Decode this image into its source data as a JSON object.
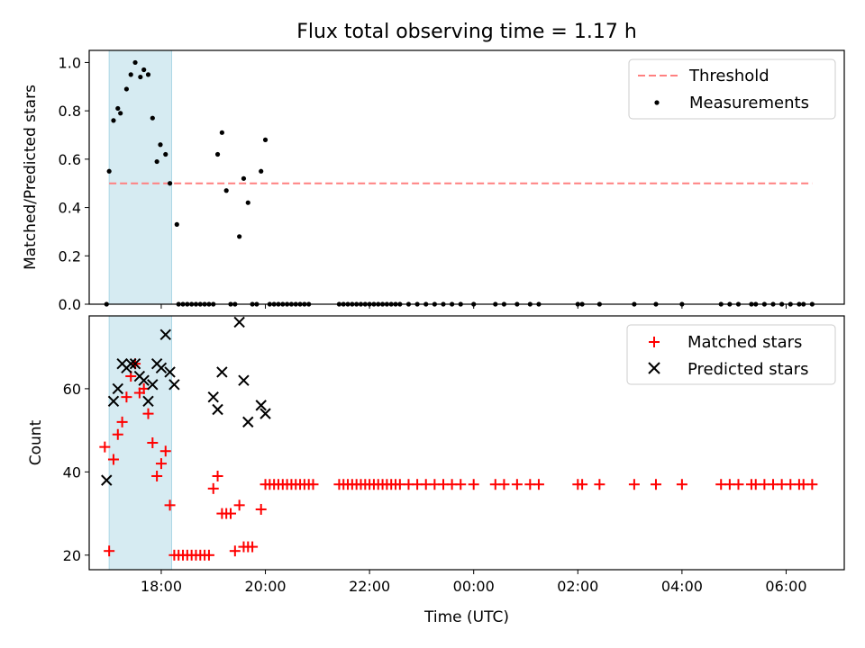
{
  "figure": {
    "title": "Flux total observing time = 1.17 h",
    "xlabel": "Time (UTC)"
  },
  "chart_data": [
    {
      "type": "scatter",
      "panel": "top",
      "ylabel": "Matched/Predicted stars",
      "xlim": [
        "16:37",
        "07:07"
      ],
      "ylim": [
        0,
        1.05
      ],
      "x_ticks": [
        "18:00",
        "20:00",
        "22:00",
        "00:00",
        "02:00",
        "04:00",
        "06:00"
      ],
      "y_ticks": [
        "0.0",
        "0.2",
        "0.4",
        "0.6",
        "0.8",
        "1.0"
      ],
      "shaded_interval": [
        "17:00",
        "18:12"
      ],
      "threshold": 0.5,
      "legend_position": "upper right",
      "series": [
        {
          "name": "Threshold",
          "kind": "dashed-line",
          "color": "#ff8080",
          "x": [
            "17:00",
            "06:30"
          ],
          "y": [
            0.5,
            0.5
          ]
        },
        {
          "name": "Measurements",
          "kind": "dot",
          "color": "#000000",
          "points": [
            [
              "16:57",
              0.0
            ],
            [
              "17:00",
              0.55
            ],
            [
              "17:05",
              0.76
            ],
            [
              "17:10",
              0.81
            ],
            [
              "17:13",
              0.79
            ],
            [
              "17:20",
              0.89
            ],
            [
              "17:25",
              0.95
            ],
            [
              "17:30",
              1.0
            ],
            [
              "17:36",
              0.94
            ],
            [
              "17:40",
              0.97
            ],
            [
              "17:45",
              0.95
            ],
            [
              "17:50",
              0.77
            ],
            [
              "17:55",
              0.59
            ],
            [
              "17:59",
              0.66
            ],
            [
              "18:05",
              0.62
            ],
            [
              "18:10",
              0.5
            ],
            [
              "18:18",
              0.33
            ],
            [
              "18:20",
              0.0
            ],
            [
              "18:25",
              0.0
            ],
            [
              "18:30",
              0.0
            ],
            [
              "18:35",
              0.0
            ],
            [
              "18:40",
              0.0
            ],
            [
              "18:45",
              0.0
            ],
            [
              "18:50",
              0.0
            ],
            [
              "18:55",
              0.0
            ],
            [
              "19:00",
              0.0
            ],
            [
              "19:05",
              0.62
            ],
            [
              "19:10",
              0.71
            ],
            [
              "19:15",
              0.47
            ],
            [
              "19:20",
              0.0
            ],
            [
              "19:25",
              0.0
            ],
            [
              "19:30",
              0.28
            ],
            [
              "19:35",
              0.52
            ],
            [
              "19:40",
              0.42
            ],
            [
              "19:45",
              0.0
            ],
            [
              "19:50",
              0.0
            ],
            [
              "19:55",
              0.55
            ],
            [
              "20:00",
              0.68
            ],
            [
              "20:05",
              0.0
            ],
            [
              "20:10",
              0.0
            ],
            [
              "20:15",
              0.0
            ],
            [
              "20:20",
              0.0
            ],
            [
              "20:25",
              0.0
            ],
            [
              "20:30",
              0.0
            ],
            [
              "20:35",
              0.0
            ],
            [
              "20:40",
              0.0
            ],
            [
              "20:45",
              0.0
            ],
            [
              "20:50",
              0.0
            ],
            [
              "21:25",
              0.0
            ],
            [
              "21:30",
              0.0
            ],
            [
              "21:35",
              0.0
            ],
            [
              "21:40",
              0.0
            ],
            [
              "21:45",
              0.0
            ],
            [
              "21:50",
              0.0
            ],
            [
              "21:55",
              0.0
            ],
            [
              "22:00",
              0.0
            ],
            [
              "22:05",
              0.0
            ],
            [
              "22:10",
              0.0
            ],
            [
              "22:15",
              0.0
            ],
            [
              "22:20",
              0.0
            ],
            [
              "22:25",
              0.0
            ],
            [
              "22:30",
              0.0
            ],
            [
              "22:35",
              0.0
            ],
            [
              "22:45",
              0.0
            ],
            [
              "22:55",
              0.0
            ],
            [
              "23:05",
              0.0
            ],
            [
              "23:15",
              0.0
            ],
            [
              "23:25",
              0.0
            ],
            [
              "23:35",
              0.0
            ],
            [
              "23:45",
              0.0
            ],
            [
              "00:00",
              0.0
            ],
            [
              "00:25",
              0.0
            ],
            [
              "00:35",
              0.0
            ],
            [
              "00:50",
              0.0
            ],
            [
              "01:05",
              0.0
            ],
            [
              "01:15",
              0.0
            ],
            [
              "02:00",
              0.0
            ],
            [
              "02:05",
              0.0
            ],
            [
              "02:25",
              0.0
            ],
            [
              "03:05",
              0.0
            ],
            [
              "03:30",
              0.0
            ],
            [
              "04:00",
              0.0
            ],
            [
              "04:45",
              0.0
            ],
            [
              "04:55",
              0.0
            ],
            [
              "05:05",
              0.0
            ],
            [
              "05:20",
              0.0
            ],
            [
              "05:25",
              0.0
            ],
            [
              "05:35",
              0.0
            ],
            [
              "05:45",
              0.0
            ],
            [
              "05:55",
              0.0
            ],
            [
              "06:05",
              0.0
            ],
            [
              "06:15",
              0.0
            ],
            [
              "06:20",
              0.0
            ],
            [
              "06:30",
              0.0
            ]
          ]
        }
      ]
    },
    {
      "type": "scatter",
      "panel": "bottom",
      "ylabel": "Count",
      "xlabel": "Time (UTC)",
      "xlim": [
        "16:37",
        "07:07"
      ],
      "ylim": [
        16.5,
        77.5
      ],
      "x_ticks": [
        "18:00",
        "20:00",
        "22:00",
        "00:00",
        "02:00",
        "04:00",
        "06:00"
      ],
      "y_ticks": [
        "20",
        "40",
        "60"
      ],
      "shaded_interval": [
        "17:00",
        "18:12"
      ],
      "legend_position": "upper right",
      "series": [
        {
          "name": "Matched stars",
          "marker": "+",
          "color": "#ff0000",
          "points": [
            [
              "16:55",
              46
            ],
            [
              "17:00",
              21
            ],
            [
              "17:05",
              43
            ],
            [
              "17:10",
              49
            ],
            [
              "17:15",
              52
            ],
            [
              "17:20",
              58
            ],
            [
              "17:25",
              63
            ],
            [
              "17:30",
              66
            ],
            [
              "17:35",
              59
            ],
            [
              "17:40",
              60
            ],
            [
              "17:45",
              54
            ],
            [
              "17:50",
              47
            ],
            [
              "17:55",
              39
            ],
            [
              "18:00",
              42
            ],
            [
              "18:05",
              45
            ],
            [
              "18:10",
              32
            ],
            [
              "18:15",
              20
            ],
            [
              "18:20",
              20
            ],
            [
              "18:25",
              20
            ],
            [
              "18:30",
              20
            ],
            [
              "18:35",
              20
            ],
            [
              "18:40",
              20
            ],
            [
              "18:45",
              20
            ],
            [
              "18:50",
              20
            ],
            [
              "18:55",
              20
            ],
            [
              "19:00",
              36
            ],
            [
              "19:05",
              39
            ],
            [
              "19:10",
              30
            ],
            [
              "19:15",
              30
            ],
            [
              "19:20",
              30
            ],
            [
              "19:25",
              21
            ],
            [
              "19:30",
              32
            ],
            [
              "19:35",
              22
            ],
            [
              "19:40",
              22
            ],
            [
              "19:45",
              22
            ],
            [
              "19:55",
              31
            ],
            [
              "20:00",
              37
            ],
            [
              "20:05",
              37
            ],
            [
              "20:10",
              37
            ],
            [
              "20:15",
              37
            ],
            [
              "20:20",
              37
            ],
            [
              "20:25",
              37
            ],
            [
              "20:30",
              37
            ],
            [
              "20:35",
              37
            ],
            [
              "20:40",
              37
            ],
            [
              "20:45",
              37
            ],
            [
              "20:50",
              37
            ],
            [
              "20:55",
              37
            ],
            [
              "21:25",
              37
            ],
            [
              "21:30",
              37
            ],
            [
              "21:35",
              37
            ],
            [
              "21:40",
              37
            ],
            [
              "21:45",
              37
            ],
            [
              "21:50",
              37
            ],
            [
              "21:55",
              37
            ],
            [
              "22:00",
              37
            ],
            [
              "22:05",
              37
            ],
            [
              "22:10",
              37
            ],
            [
              "22:15",
              37
            ],
            [
              "22:20",
              37
            ],
            [
              "22:25",
              37
            ],
            [
              "22:30",
              37
            ],
            [
              "22:35",
              37
            ],
            [
              "22:45",
              37
            ],
            [
              "22:55",
              37
            ],
            [
              "23:05",
              37
            ],
            [
              "23:15",
              37
            ],
            [
              "23:25",
              37
            ],
            [
              "23:35",
              37
            ],
            [
              "23:45",
              37
            ],
            [
              "00:00",
              37
            ],
            [
              "00:25",
              37
            ],
            [
              "00:35",
              37
            ],
            [
              "00:50",
              37
            ],
            [
              "01:05",
              37
            ],
            [
              "01:15",
              37
            ],
            [
              "02:00",
              37
            ],
            [
              "02:05",
              37
            ],
            [
              "02:25",
              37
            ],
            [
              "03:05",
              37
            ],
            [
              "03:30",
              37
            ],
            [
              "04:00",
              37
            ],
            [
              "04:45",
              37
            ],
            [
              "04:55",
              37
            ],
            [
              "05:05",
              37
            ],
            [
              "05:20",
              37
            ],
            [
              "05:25",
              37
            ],
            [
              "05:35",
              37
            ],
            [
              "05:45",
              37
            ],
            [
              "05:55",
              37
            ],
            [
              "06:05",
              37
            ],
            [
              "06:15",
              37
            ],
            [
              "06:20",
              37
            ],
            [
              "06:30",
              37
            ]
          ]
        },
        {
          "name": "Predicted stars",
          "marker": "x",
          "color": "#000000",
          "points": [
            [
              "16:57",
              38
            ],
            [
              "17:05",
              57
            ],
            [
              "17:10",
              60
            ],
            [
              "17:15",
              66
            ],
            [
              "17:20",
              65
            ],
            [
              "17:25",
              66
            ],
            [
              "17:30",
              66
            ],
            [
              "17:35",
              63
            ],
            [
              "17:40",
              62
            ],
            [
              "17:45",
              57
            ],
            [
              "17:50",
              61
            ],
            [
              "17:55",
              66
            ],
            [
              "18:00",
              65
            ],
            [
              "18:05",
              73
            ],
            [
              "18:10",
              64
            ],
            [
              "18:15",
              61
            ],
            [
              "19:00",
              58
            ],
            [
              "19:05",
              55
            ],
            [
              "19:10",
              64
            ],
            [
              "19:30",
              76
            ],
            [
              "19:35",
              62
            ],
            [
              "19:40",
              52
            ],
            [
              "19:55",
              56
            ],
            [
              "20:00",
              54
            ]
          ]
        }
      ]
    }
  ]
}
